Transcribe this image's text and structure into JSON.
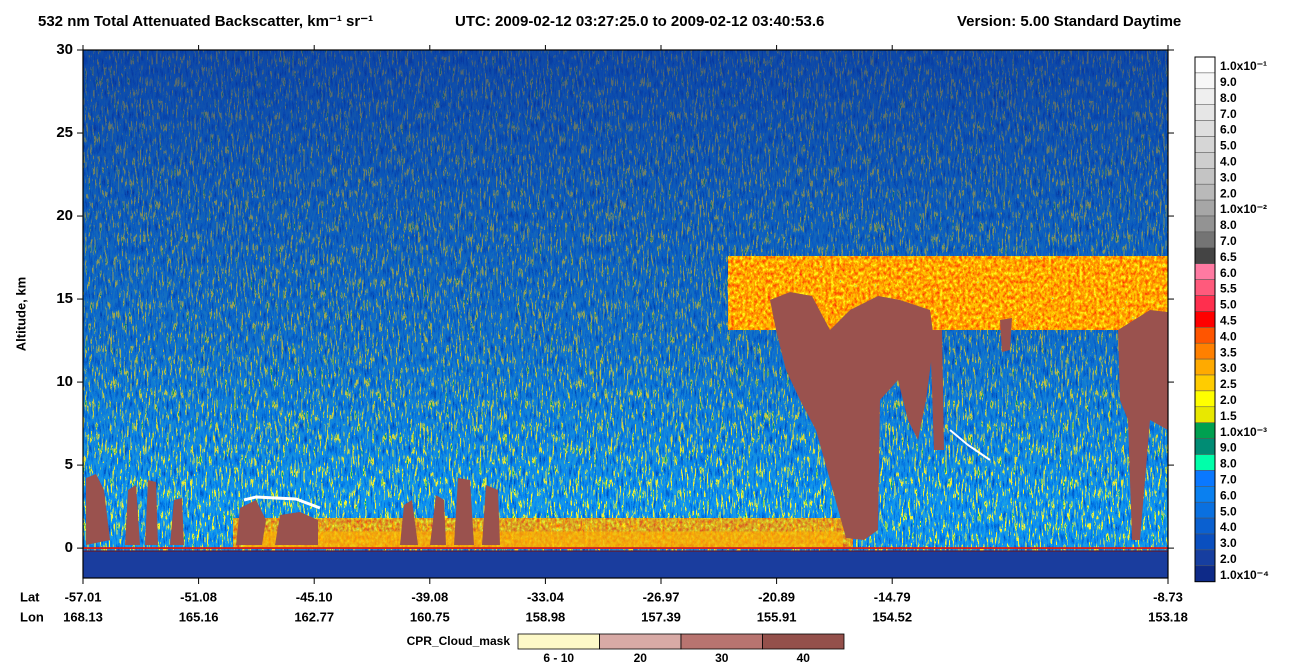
{
  "chart_data": {
    "type": "heatmap",
    "title": "532 nm Total Attenuated Backscatter, km⁻¹ sr⁻¹",
    "utc": "UTC:  2009-02-12 03:27:25.0  to  2009-02-12 03:40:53.6",
    "version": "Version: 5.00  Standard  Daytime",
    "y_label": "Altitude, km",
    "ylim": [
      -1.8,
      30
    ],
    "yticks": [
      0,
      5,
      10,
      15,
      20,
      25,
      30
    ],
    "x_row_labels": [
      "Lat",
      "Lon"
    ],
    "lat_ticks": [
      -57.01,
      -51.08,
      {
        "value": -45.1,
        "label": "-45.10"
      },
      -39.08,
      -33.04,
      -26.97,
      -20.89,
      -14.79,
      -8.73
    ],
    "lon_ticks": [
      168.13,
      165.16,
      162.77,
      160.75,
      158.98,
      157.39,
      155.91,
      154.52,
      153.18
    ],
    "colorbar": [
      {
        "label": "1.0x10⁻¹",
        "color": "#ffffff"
      },
      {
        "label": "9.0",
        "color": "#f7f7f7"
      },
      {
        "label": "8.0",
        "color": "#efefef"
      },
      {
        "label": "7.0",
        "color": "#e6e6e6"
      },
      {
        "label": "6.0",
        "color": "#dedede"
      },
      {
        "label": "5.0",
        "color": "#d6d6d6"
      },
      {
        "label": "4.0",
        "color": "#cecece"
      },
      {
        "label": "3.0",
        "color": "#c4c4c4"
      },
      {
        "label": "2.0",
        "color": "#b9b9b9"
      },
      {
        "label": "1.0x10⁻²",
        "color": "#a6a6a6"
      },
      {
        "label": "8.0",
        "color": "#939393"
      },
      {
        "label": "7.0",
        "color": "#747474"
      },
      {
        "label": "6.5",
        "color": "#444444"
      },
      {
        "label": "6.0",
        "color": "#ff7aa2"
      },
      {
        "label": "5.5",
        "color": "#ff5a7c"
      },
      {
        "label": "5.0",
        "color": "#ff2f4e"
      },
      {
        "label": "4.5",
        "color": "#ff0000"
      },
      {
        "label": "4.0",
        "color": "#ff5500"
      },
      {
        "label": "3.5",
        "color": "#ff8000"
      },
      {
        "label": "3.0",
        "color": "#ffaa00"
      },
      {
        "label": "2.5",
        "color": "#ffcc00"
      },
      {
        "label": "2.0",
        "color": "#ffff00"
      },
      {
        "label": "1.5",
        "color": "#e8e800"
      },
      {
        "label": "1.0x10⁻³",
        "color": "#00a050"
      },
      {
        "label": "9.0",
        "color": "#008c74"
      },
      {
        "label": "8.0",
        "color": "#00ffaa"
      },
      {
        "label": "7.0",
        "color": "#0a78ff"
      },
      {
        "label": "6.0",
        "color": "#0a80f0"
      },
      {
        "label": "5.0",
        "color": "#0a70e0"
      },
      {
        "label": "4.0",
        "color": "#0a60d0"
      },
      {
        "label": "3.0",
        "color": "#0a4fbf"
      },
      {
        "label": "2.0",
        "color": "#163ea0"
      },
      {
        "label": "1.0x10⁻⁴",
        "color": "#0e2a88"
      }
    ],
    "cpr_legend": {
      "title": "CPR_Cloud_mask",
      "items": [
        {
          "label": "6 - 10",
          "color": "#fdf9c8"
        },
        {
          "label": "20",
          "color": "#d8aaa6"
        },
        {
          "label": "30",
          "color": "#b87470"
        },
        {
          "label": "40",
          "color": "#94504b"
        }
      ]
    }
  }
}
